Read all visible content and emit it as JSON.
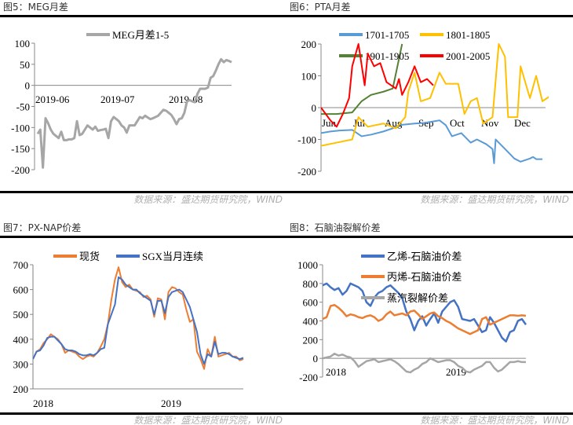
{
  "panels": [
    {
      "title": "图5：MEG月差",
      "source": "数据来源：盛达期货研究院，WIND"
    },
    {
      "title": "图6：PTA月差",
      "source": "数据来源：盛达期货研究院，WIND"
    },
    {
      "title": "图7：PX-NAP价差",
      "source": "数据来源：盛达期货研究院，WIND"
    },
    {
      "title": "图8：石脑油裂解价差",
      "source": "数据来源：盛达期货研究院，WIND"
    }
  ],
  "chart_data": [
    {
      "type": "line",
      "title": "图5：MEG月差",
      "ylim": [
        -200,
        100
      ],
      "yticks": [
        "100",
        "50",
        "0",
        "-50",
        "-100",
        "-150",
        "-200"
      ],
      "xticks": [
        "2019-06",
        "2019-07",
        "2019-08"
      ],
      "legend": "top",
      "series": [
        {
          "name": "MEG月差1-5",
          "color": "#a6a6a6",
          "values": [
            -115,
            -105,
            -195,
            -78,
            -90,
            -105,
            -115,
            -120,
            -125,
            -110,
            -130,
            -130,
            -128,
            -128,
            -125,
            -85,
            -118,
            -115,
            -105,
            -95,
            -100,
            -105,
            -98,
            -108,
            -106,
            -105,
            -103,
            -125,
            -85,
            -75,
            -80,
            -85,
            -95,
            -100,
            -112,
            -95,
            -95,
            -95,
            -85,
            -75,
            -78,
            -72,
            -76,
            -80,
            -78,
            -75,
            -72,
            -65,
            -58,
            -60,
            -65,
            -70,
            -80,
            -92,
            -80,
            -78,
            -65,
            -38,
            -35,
            -38,
            -40,
            -20,
            -8,
            -8,
            -8,
            -5,
            18,
            22,
            35,
            50,
            62,
            55,
            60,
            58,
            55
          ]
        }
      ]
    },
    {
      "type": "line",
      "title": "图6：PTA月差",
      "ylim": [
        -200,
        200
      ],
      "yticks": [
        "200",
        "100",
        "0",
        "-100",
        "-200"
      ],
      "xticks": [
        "Jun",
        "Jul",
        "Aug",
        "Sep",
        "Oct",
        "Nov",
        "Dec"
      ],
      "legend": "top",
      "series": [
        {
          "name": "1701-1705",
          "color": "#5b9bd5",
          "points": [
            [
              0,
              -80
            ],
            [
              0.3,
              -75
            ],
            [
              0.6,
              -72
            ],
            [
              1,
              -70
            ],
            [
              1.3,
              -90
            ],
            [
              1.6,
              -85
            ],
            [
              2,
              -75
            ],
            [
              2.3,
              -65
            ],
            [
              2.5,
              -55
            ],
            [
              3,
              -50
            ],
            [
              3.3,
              -48
            ],
            [
              3.5,
              -45
            ],
            [
              3.8,
              -40
            ],
            [
              4,
              -55
            ],
            [
              4.2,
              -90
            ],
            [
              4.5,
              -80
            ],
            [
              4.8,
              -110
            ],
            [
              5,
              -100
            ],
            [
              5.3,
              -115
            ],
            [
              5.5,
              -130
            ],
            [
              5.55,
              -175
            ],
            [
              5.6,
              -100
            ],
            [
              5.8,
              -120
            ],
            [
              6,
              -140
            ],
            [
              6.2,
              -160
            ],
            [
              6.4,
              -170
            ],
            [
              6.7,
              -160
            ],
            [
              6.8,
              -155
            ],
            [
              6.9,
              -162
            ],
            [
              7.1,
              -162
            ]
          ]
        },
        {
          "name": "1801-1805",
          "color": "#ffc000",
          "points": [
            [
              0,
              -120
            ],
            [
              0.5,
              -110
            ],
            [
              1,
              -100
            ],
            [
              1.2,
              -30
            ],
            [
              1.5,
              -60
            ],
            [
              2,
              -50
            ],
            [
              2.4,
              -65
            ],
            [
              2.7,
              -30
            ],
            [
              2.8,
              50
            ],
            [
              3,
              110
            ],
            [
              3.2,
              20
            ],
            [
              3.5,
              30
            ],
            [
              3.8,
              110
            ],
            [
              4,
              75
            ],
            [
              4.4,
              75
            ],
            [
              4.6,
              -20
            ],
            [
              4.8,
              20
            ],
            [
              5,
              30
            ],
            [
              5.2,
              -50
            ],
            [
              5.5,
              -30
            ],
            [
              5.7,
              200
            ],
            [
              5.9,
              160
            ],
            [
              6,
              -30
            ],
            [
              6.3,
              -30
            ],
            [
              6.4,
              130
            ],
            [
              6.7,
              30
            ],
            [
              6.9,
              100
            ],
            [
              7.1,
              20
            ],
            [
              7.4,
              40
            ],
            [
              7.6,
              0
            ],
            [
              7.8,
              0
            ]
          ]
        },
        {
          "name": "1901-1905",
          "color": "#548235",
          "points": [
            [
              0,
              -20
            ],
            [
              0.5,
              -20
            ],
            [
              1,
              -15
            ],
            [
              1.3,
              20
            ],
            [
              1.6,
              40
            ],
            [
              2,
              50
            ],
            [
              2.3,
              60
            ],
            [
              2.6,
              200
            ]
          ]
        },
        {
          "name": "2001-2005",
          "color": "#ff0000",
          "points": [
            [
              0,
              0
            ],
            [
              0.3,
              -40
            ],
            [
              0.5,
              -60
            ],
            [
              0.7,
              -20
            ],
            [
              0.9,
              30
            ],
            [
              1,
              130
            ],
            [
              1.2,
              200
            ],
            [
              1.4,
              70
            ],
            [
              1.5,
              170
            ],
            [
              1.7,
              130
            ],
            [
              1.9,
              140
            ],
            [
              2.1,
              80
            ],
            [
              2.4,
              60
            ],
            [
              2.5,
              90
            ],
            [
              2.6,
              40
            ],
            [
              2.8,
              80
            ],
            [
              3,
              130
            ],
            [
              3.2,
              80
            ],
            [
              3.4,
              90
            ],
            [
              3.6,
              70
            ]
          ]
        }
      ]
    },
    {
      "type": "line",
      "title": "图7：PX-NAP价差",
      "ylim": [
        200,
        700
      ],
      "yticks": [
        "700",
        "600",
        "500",
        "400",
        "300",
        "200"
      ],
      "xticks": [
        "2018",
        "2019"
      ],
      "legend": "top",
      "series": [
        {
          "name": "现货",
          "color": "#ed7d31",
          "values": [
            320,
            350,
            360,
            385,
            400,
            420,
            410,
            400,
            380,
            345,
            355,
            350,
            345,
            330,
            320,
            330,
            335,
            330,
            345,
            370,
            400,
            460,
            560,
            640,
            690,
            630,
            610,
            620,
            600,
            595,
            590,
            570,
            575,
            560,
            490,
            565,
            560,
            480,
            590,
            610,
            605,
            590,
            580,
            520,
            470,
            480,
            350,
            320,
            280,
            360,
            330,
            410,
            330,
            335,
            340,
            345,
            330,
            330,
            315,
            320
          ]
        },
        {
          "name": "SGX当月连续",
          "color": "#4472c4",
          "values": [
            320,
            350,
            355,
            375,
            405,
            410,
            410,
            395,
            380,
            360,
            355,
            355,
            350,
            340,
            335,
            335,
            340,
            335,
            345,
            360,
            365,
            460,
            500,
            540,
            650,
            640,
            620,
            610,
            600,
            600,
            585,
            575,
            565,
            555,
            500,
            555,
            555,
            505,
            570,
            590,
            595,
            600,
            590,
            560,
            530,
            480,
            430,
            340,
            300,
            340,
            330,
            390,
            340,
            345,
            345,
            340,
            330,
            325,
            320,
            325
          ]
        }
      ]
    },
    {
      "type": "line",
      "title": "图8：石脑油裂解价差",
      "ylim": [
        -200,
        1000
      ],
      "yticks": [
        "1000",
        "800",
        "600",
        "400",
        "200",
        "0",
        "-200"
      ],
      "xticks": [
        "2018",
        "2019"
      ],
      "legend": "top-center",
      "series": [
        {
          "name": "乙烯-石脑油价差",
          "color": "#4472c4",
          "values": [
            780,
            800,
            760,
            730,
            750,
            680,
            720,
            800,
            780,
            760,
            720,
            600,
            560,
            650,
            700,
            720,
            760,
            780,
            740,
            700,
            640,
            500,
            420,
            300,
            400,
            450,
            350,
            420,
            480,
            380,
            500,
            550,
            600,
            620,
            550,
            420,
            410,
            400,
            420,
            350,
            280,
            300,
            440,
            380,
            300,
            220,
            180,
            280,
            300,
            400,
            420,
            360
          ]
        },
        {
          "name": "丙烯-石脑油价差",
          "color": "#ed7d31",
          "values": [
            420,
            440,
            560,
            570,
            540,
            500,
            450,
            470,
            460,
            440,
            430,
            450,
            460,
            440,
            400,
            420,
            470,
            500,
            460,
            470,
            480,
            460,
            500,
            510,
            470,
            420,
            450,
            480,
            490,
            450,
            430,
            400,
            380,
            350,
            320,
            300,
            280,
            260,
            280,
            300,
            420,
            440,
            360,
            380,
            400,
            420,
            440,
            460,
            460,
            455,
            460,
            455
          ]
        },
        {
          "name": "蒸汽裂解价差",
          "color": "#a6a6a6",
          "values": [
            0,
            10,
            20,
            50,
            30,
            40,
            20,
            10,
            -30,
            -90,
            -60,
            -30,
            -20,
            -10,
            -40,
            -30,
            -20,
            -10,
            -30,
            -60,
            -100,
            -140,
            -150,
            -120,
            -100,
            -60,
            -40,
            0,
            -20,
            -40,
            -30,
            -20,
            -20,
            -40,
            -80,
            -100,
            -140,
            -150,
            -120,
            -100,
            -80,
            -40,
            -40,
            -100,
            -140,
            -120,
            -80,
            -40,
            -40,
            -30,
            -40,
            -40
          ]
        }
      ]
    }
  ]
}
